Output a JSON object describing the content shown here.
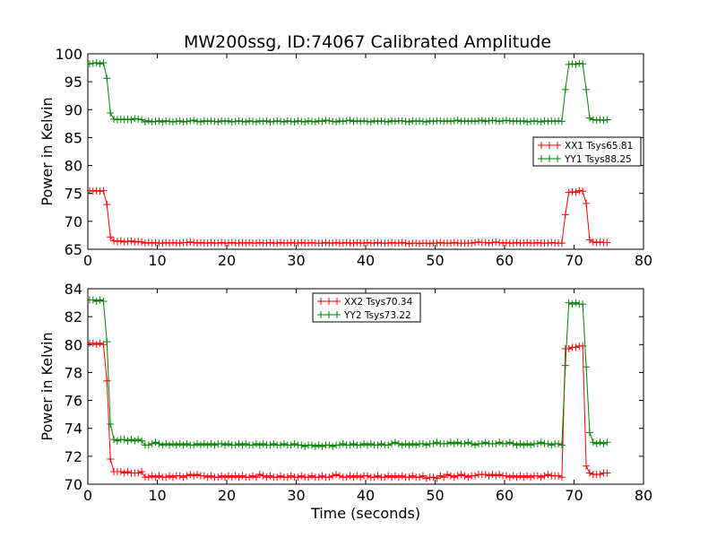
{
  "title": "MW200ssg, ID:74067 Calibrated Amplitude",
  "colors": {
    "red": "#ff0000",
    "green": "#008000"
  },
  "chart_data": [
    {
      "type": "line",
      "title": "MW200ssg, ID:74067 Calibrated Amplitude",
      "xlabel": "",
      "ylabel": "Power in Kelvin",
      "xlim": [
        0,
        80
      ],
      "ylim": [
        65,
        100
      ],
      "xticks": [
        "0",
        "10",
        "20",
        "30",
        "40",
        "50",
        "60",
        "70",
        "80"
      ],
      "yticks": [
        "65",
        "70",
        "75",
        "80",
        "85",
        "90",
        "95",
        "100"
      ],
      "legend_position": "right",
      "x": [
        0.25,
        0.75,
        1.25,
        1.75,
        2.25,
        2.75,
        3.25,
        3.75,
        4.25,
        4.75,
        5.25,
        5.75,
        6.25,
        6.75,
        7.25,
        7.75,
        8.25,
        8.75,
        9.25,
        9.75,
        10.25,
        10.75,
        11.25,
        11.75,
        12.25,
        12.75,
        13.25,
        13.75,
        14.25,
        14.75,
        15.25,
        15.75,
        16.25,
        16.75,
        17.25,
        17.75,
        18.25,
        18.75,
        19.25,
        19.75,
        20.25,
        20.75,
        21.25,
        21.75,
        22.25,
        22.75,
        23.25,
        23.75,
        24.25,
        24.75,
        25.25,
        25.75,
        26.25,
        26.75,
        27.25,
        27.75,
        28.25,
        28.75,
        29.25,
        29.75,
        30.25,
        30.75,
        31.25,
        31.75,
        32.25,
        32.75,
        33.25,
        33.75,
        34.25,
        34.75,
        35.25,
        35.75,
        36.25,
        36.75,
        37.25,
        37.75,
        38.25,
        38.75,
        39.25,
        39.75,
        40.25,
        40.75,
        41.25,
        41.75,
        42.25,
        42.75,
        43.25,
        43.75,
        44.25,
        44.75,
        45.25,
        45.75,
        46.25,
        46.75,
        47.25,
        47.75,
        48.25,
        48.75,
        49.25,
        49.75,
        50.25,
        50.75,
        51.25,
        51.75,
        52.25,
        52.75,
        53.25,
        53.75,
        54.25,
        54.75,
        55.25,
        55.75,
        56.25,
        56.75,
        57.25,
        57.75,
        58.25,
        58.75,
        59.25,
        59.75,
        60.25,
        60.75,
        61.25,
        61.75,
        62.25,
        62.75,
        63.25,
        63.75,
        64.25,
        64.75,
        65.25,
        65.75,
        66.25,
        66.75,
        67.25,
        67.75,
        68.25,
        68.75,
        69.25,
        69.75,
        70.25,
        70.75,
        71.25,
        71.75,
        72.25,
        72.75,
        73.25,
        73.75,
        74.25,
        74.75
      ],
      "series": [
        {
          "name": "XX1 Tsys65.81",
          "color": "#ff0000",
          "values": [
            75.5,
            75.4,
            75.5,
            75.4,
            75.5,
            73.0,
            67.2,
            66.5,
            66.4,
            66.5,
            66.3,
            66.4,
            66.5,
            66.3,
            66.4,
            66.3,
            66.1,
            66.2,
            66.1,
            66.2,
            66.1,
            66.1,
            66.2,
            66.1,
            66.2,
            66.1,
            66.1,
            66.2,
            66.2,
            66.3,
            66.2,
            66.1,
            66.2,
            66.1,
            66.1,
            66.2,
            66.1,
            66.1,
            66.2,
            66.1,
            66.1,
            66.2,
            66.1,
            66.1,
            66.2,
            66.1,
            66.2,
            66.1,
            66.1,
            66.2,
            66.1,
            66.1,
            66.2,
            66.1,
            66.1,
            66.2,
            66.1,
            66.1,
            66.2,
            66.1,
            66.1,
            66.2,
            66.1,
            66.1,
            66.2,
            66.1,
            66.1,
            66.1,
            66.2,
            66.1,
            66.1,
            66.2,
            66.1,
            66.1,
            66.2,
            66.1,
            66.1,
            66.2,
            66.1,
            66.1,
            66.2,
            66.1,
            66.1,
            66.2,
            66.1,
            66.1,
            66.1,
            66.2,
            66.1,
            66.1,
            66.2,
            66.1,
            66.0,
            66.1,
            66.1,
            66.0,
            66.1,
            66.1,
            66.0,
            66.1,
            66.1,
            66.2,
            66.1,
            66.1,
            66.1,
            66.2,
            66.1,
            66.1,
            66.1,
            66.1,
            66.1,
            66.2,
            66.3,
            66.2,
            66.2,
            66.1,
            66.2,
            66.3,
            66.2,
            66.1,
            66.2,
            66.1,
            66.1,
            66.2,
            66.1,
            66.1,
            66.2,
            66.1,
            66.1,
            66.2,
            66.1,
            66.1,
            66.1,
            66.2,
            66.1,
            66.1,
            66.1,
            71.2,
            75.2,
            75.3,
            75.2,
            75.5,
            75.4,
            73.2,
            66.7,
            66.3,
            66.2,
            66.3,
            66.2,
            66.2
          ]
        },
        {
          "name": "YY1 Tsys88.25",
          "color": "#008000",
          "values": [
            98.2,
            98.3,
            98.4,
            98.2,
            98.4,
            95.6,
            89.4,
            88.3,
            88.2,
            88.3,
            88.2,
            88.3,
            88.2,
            88.4,
            88.3,
            88.2,
            87.8,
            88.0,
            87.8,
            87.9,
            88.0,
            87.8,
            88.0,
            87.9,
            87.8,
            87.9,
            88.0,
            87.8,
            87.9,
            88.0,
            88.1,
            87.9,
            87.8,
            88.0,
            87.9,
            88.0,
            87.9,
            87.8,
            88.0,
            87.9,
            88.0,
            87.8,
            87.9,
            88.0,
            87.9,
            87.8,
            88.0,
            87.9,
            87.8,
            88.0,
            87.9,
            88.0,
            87.8,
            87.9,
            88.0,
            87.9,
            87.8,
            88.0,
            87.9,
            87.8,
            88.0,
            87.9,
            87.8,
            88.0,
            87.9,
            87.8,
            88.0,
            87.9,
            88.1,
            88.0,
            87.9,
            87.8,
            88.0,
            87.9,
            88.0,
            88.1,
            87.9,
            88.0,
            87.9,
            88.0,
            87.9,
            87.8,
            88.0,
            87.9,
            88.0,
            87.9,
            87.8,
            88.0,
            87.9,
            88.0,
            88.0,
            87.9,
            87.8,
            88.0,
            87.9,
            88.0,
            87.9,
            87.8,
            88.0,
            87.9,
            88.0,
            88.0,
            87.9,
            88.0,
            87.9,
            88.0,
            88.1,
            87.9,
            88.0,
            87.9,
            88.0,
            87.9,
            88.0,
            88.1,
            87.9,
            88.0,
            88.1,
            88.0,
            87.9,
            88.0,
            88.1,
            88.0,
            87.9,
            88.0,
            87.9,
            88.0,
            87.8,
            87.9,
            88.0,
            87.9,
            87.8,
            88.0,
            87.9,
            88.0,
            87.9,
            88.0,
            87.9,
            93.6,
            98.1,
            98.2,
            98.1,
            98.3,
            98.2,
            93.6,
            88.5,
            88.2,
            88.1,
            88.2,
            88.1,
            88.2
          ]
        }
      ]
    },
    {
      "type": "line",
      "title": "",
      "xlabel": "Time (seconds)",
      "ylabel": "Power in Kelvin",
      "xlim": [
        0,
        80
      ],
      "ylim": [
        70,
        84
      ],
      "xticks": [
        "0",
        "10",
        "20",
        "30",
        "40",
        "50",
        "60",
        "70",
        "80"
      ],
      "yticks": [
        "70",
        "72",
        "74",
        "76",
        "78",
        "80",
        "82",
        "84"
      ],
      "legend_position": "upper center",
      "x": [
        0.25,
        0.75,
        1.25,
        1.75,
        2.25,
        2.75,
        3.25,
        3.75,
        4.25,
        4.75,
        5.25,
        5.75,
        6.25,
        6.75,
        7.25,
        7.75,
        8.25,
        8.75,
        9.25,
        9.75,
        10.25,
        10.75,
        11.25,
        11.75,
        12.25,
        12.75,
        13.25,
        13.75,
        14.25,
        14.75,
        15.25,
        15.75,
        16.25,
        16.75,
        17.25,
        17.75,
        18.25,
        18.75,
        19.25,
        19.75,
        20.25,
        20.75,
        21.25,
        21.75,
        22.25,
        22.75,
        23.25,
        23.75,
        24.25,
        24.75,
        25.25,
        25.75,
        26.25,
        26.75,
        27.25,
        27.75,
        28.25,
        28.75,
        29.25,
        29.75,
        30.25,
        30.75,
        31.25,
        31.75,
        32.25,
        32.75,
        33.25,
        33.75,
        34.25,
        34.75,
        35.25,
        35.75,
        36.25,
        36.75,
        37.25,
        37.75,
        38.25,
        38.75,
        39.25,
        39.75,
        40.25,
        40.75,
        41.25,
        41.75,
        42.25,
        42.75,
        43.25,
        43.75,
        44.25,
        44.75,
        45.25,
        45.75,
        46.25,
        46.75,
        47.25,
        47.75,
        48.25,
        48.75,
        49.25,
        49.75,
        50.25,
        50.75,
        51.25,
        51.75,
        52.25,
        52.75,
        53.25,
        53.75,
        54.25,
        54.75,
        55.25,
        55.75,
        56.25,
        56.75,
        57.25,
        57.75,
        58.25,
        58.75,
        59.25,
        59.75,
        60.25,
        60.75,
        61.25,
        61.75,
        62.25,
        62.75,
        63.25,
        63.75,
        64.25,
        64.75,
        65.25,
        65.75,
        66.25,
        66.75,
        67.25,
        67.75,
        68.25,
        68.75,
        69.25,
        69.75,
        70.25,
        70.75,
        71.25,
        71.75,
        72.25,
        72.75,
        73.25,
        73.75,
        74.25,
        74.75
      ],
      "series": [
        {
          "name": "XX2 Tsys70.34",
          "color": "#ff0000",
          "values": [
            80.1,
            80.1,
            80.0,
            80.1,
            80.0,
            77.4,
            71.8,
            70.9,
            70.9,
            70.9,
            70.8,
            70.9,
            70.8,
            70.8,
            70.8,
            70.9,
            70.5,
            70.5,
            70.6,
            70.5,
            70.6,
            70.5,
            70.5,
            70.6,
            70.5,
            70.6,
            70.6,
            70.5,
            70.6,
            70.7,
            70.6,
            70.7,
            70.6,
            70.6,
            70.5,
            70.6,
            70.5,
            70.5,
            70.6,
            70.5,
            70.6,
            70.5,
            70.6,
            70.5,
            70.6,
            70.5,
            70.5,
            70.6,
            70.5,
            70.7,
            70.6,
            70.5,
            70.6,
            70.5,
            70.5,
            70.6,
            70.5,
            70.5,
            70.6,
            70.5,
            70.5,
            70.6,
            70.5,
            70.5,
            70.6,
            70.5,
            70.5,
            70.6,
            70.5,
            70.5,
            70.6,
            70.7,
            70.6,
            70.5,
            70.5,
            70.6,
            70.5,
            70.6,
            70.5,
            70.6,
            70.6,
            70.5,
            70.5,
            70.6,
            70.5,
            70.5,
            70.6,
            70.5,
            70.6,
            70.5,
            70.6,
            70.5,
            70.5,
            70.6,
            70.5,
            70.5,
            70.6,
            70.4,
            70.5,
            70.5,
            70.4,
            70.6,
            70.5,
            70.7,
            70.6,
            70.5,
            70.6,
            70.7,
            70.6,
            70.5,
            70.6,
            70.6,
            70.7,
            70.7,
            70.7,
            70.6,
            70.7,
            70.6,
            70.7,
            70.6,
            70.6,
            70.5,
            70.6,
            70.5,
            70.6,
            70.5,
            70.6,
            70.5,
            70.6,
            70.6,
            70.5,
            70.6,
            70.7,
            70.6,
            70.6,
            70.6,
            70.5,
            79.7,
            79.7,
            79.8,
            79.8,
            79.9,
            79.9,
            71.3,
            70.8,
            70.7,
            70.7,
            70.7,
            70.8,
            70.8
          ]
        },
        {
          "name": "YY2 Tsys73.22",
          "color": "#008000",
          "values": [
            83.2,
            83.2,
            83.1,
            83.2,
            83.1,
            80.2,
            74.3,
            73.2,
            73.1,
            73.2,
            73.2,
            73.1,
            73.2,
            73.1,
            73.2,
            73.1,
            72.8,
            72.8,
            72.9,
            73.0,
            72.9,
            72.8,
            72.9,
            72.8,
            72.9,
            72.8,
            72.9,
            72.8,
            72.9,
            72.8,
            72.8,
            72.9,
            72.8,
            72.9,
            72.8,
            72.9,
            72.8,
            72.9,
            72.9,
            72.8,
            72.9,
            72.8,
            72.8,
            72.9,
            72.8,
            72.9,
            72.8,
            72.8,
            72.9,
            72.8,
            72.9,
            72.8,
            72.8,
            72.9,
            72.8,
            72.8,
            72.9,
            72.8,
            72.8,
            72.9,
            72.8,
            72.8,
            72.7,
            72.8,
            72.8,
            72.7,
            72.8,
            72.7,
            72.8,
            72.8,
            72.7,
            72.8,
            72.8,
            72.9,
            72.8,
            72.8,
            72.9,
            72.8,
            72.8,
            72.9,
            72.8,
            72.9,
            72.8,
            72.8,
            72.9,
            72.8,
            72.8,
            72.9,
            73.0,
            72.9,
            72.8,
            72.9,
            72.8,
            72.9,
            72.8,
            72.9,
            72.9,
            72.8,
            72.9,
            72.9,
            73.0,
            72.9,
            72.9,
            72.9,
            73.0,
            72.9,
            73.0,
            72.9,
            72.9,
            73.0,
            72.9,
            72.8,
            72.9,
            72.9,
            73.0,
            72.9,
            72.9,
            72.9,
            73.0,
            72.9,
            72.9,
            73.0,
            72.9,
            72.8,
            72.9,
            72.8,
            72.9,
            72.8,
            72.9,
            72.9,
            73.0,
            72.9,
            72.9,
            72.8,
            72.9,
            72.9,
            72.8,
            78.5,
            83.0,
            82.9,
            83.0,
            82.9,
            82.9,
            78.4,
            73.7,
            73.0,
            72.9,
            73.0,
            72.9,
            73.0
          ]
        }
      ]
    }
  ]
}
